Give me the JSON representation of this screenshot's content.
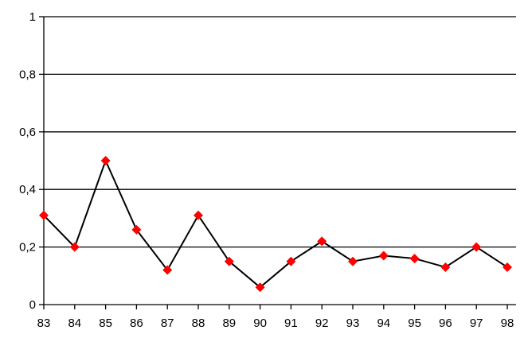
{
  "chart_data": {
    "type": "line",
    "categories": [
      "83",
      "84",
      "85",
      "86",
      "87",
      "88",
      "89",
      "90",
      "91",
      "92",
      "93",
      "94",
      "95",
      "96",
      "97",
      "98"
    ],
    "series": [
      {
        "values": [
          0.31,
          0.2,
          0.5,
          0.26,
          0.12,
          0.31,
          0.15,
          0.06,
          0.15,
          0.22,
          0.15,
          0.17,
          0.16,
          0.13,
          0.2,
          0.13
        ]
      }
    ],
    "ylim": [
      0,
      1
    ],
    "yticks": [
      0,
      0.2,
      0.4,
      0.6,
      0.8,
      1
    ],
    "ytick_labels": [
      "0",
      "0,2",
      "0,4",
      "0,6",
      "0,8",
      "1"
    ],
    "grid": true,
    "line_color": "#000000",
    "marker_color": "#ff0000",
    "marker_shape": "diamond"
  }
}
